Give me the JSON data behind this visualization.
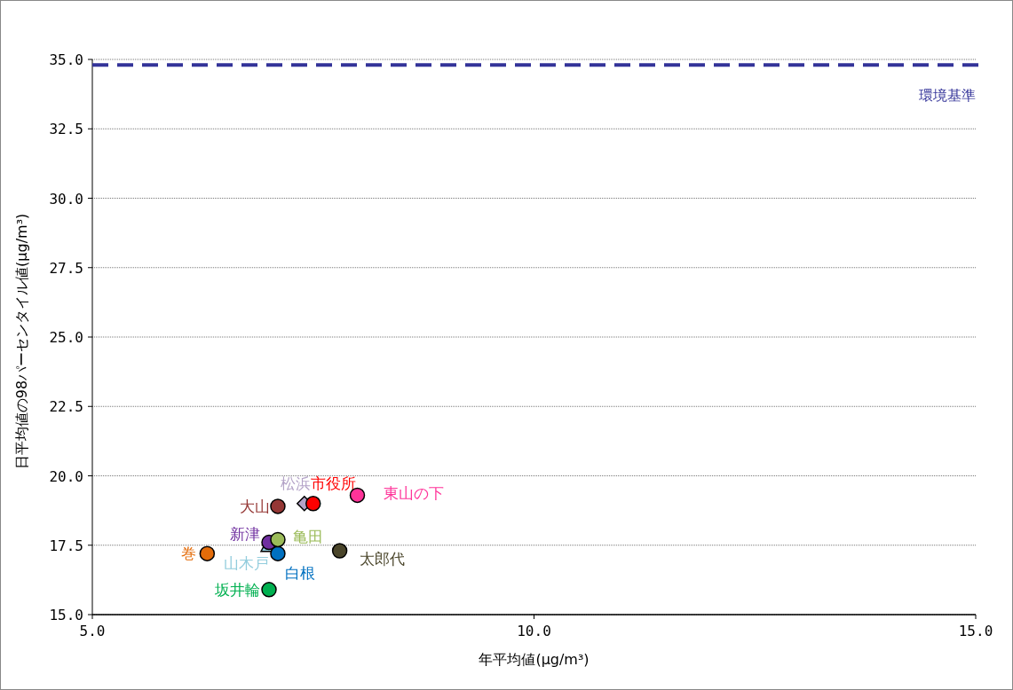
{
  "chart_data": {
    "type": "scatter",
    "xlabel": "年平均値(μg/m³)",
    "ylabel": "日平均値の98パーセンタイル値(μg/m³)",
    "xlim": [
      5,
      15
    ],
    "xticks": [
      {
        "value": 5,
        "label": "5.0"
      },
      {
        "value": 10,
        "label": "10.0"
      },
      {
        "value": 15,
        "label": "15.0"
      }
    ],
    "ylim": [
      15,
      35
    ],
    "yticks": [
      {
        "value": 15,
        "label": "15.0"
      },
      {
        "value": 17.5,
        "label": "17.5"
      },
      {
        "value": 20,
        "label": "20.0"
      },
      {
        "value": 22.5,
        "label": "22.5"
      },
      {
        "value": 25,
        "label": "25.0"
      },
      {
        "value": 27.5,
        "label": "27.5"
      },
      {
        "value": 30,
        "label": "30.0"
      },
      {
        "value": 32.5,
        "label": "32.5"
      },
      {
        "value": 35,
        "label": "35.0"
      }
    ],
    "grid": "y",
    "marker": "circle",
    "ref_lines": [
      {
        "axis": "y",
        "value": 34.8,
        "label": "環境基準",
        "color": "#333399",
        "line_style": "dashed"
      }
    ],
    "series": [
      {
        "name": "巻",
        "color": "#e46c0a",
        "x": [
          6.3
        ],
        "values": [
          17.2
        ]
      },
      {
        "name": "坂井輪",
        "color": "#00b050",
        "x": [
          7.0
        ],
        "values": [
          15.9
        ]
      },
      {
        "name": "白根",
        "color": "#0070c0",
        "x": [
          7.1
        ],
        "values": [
          17.2
        ]
      },
      {
        "name": "新津",
        "color": "#7030a0",
        "x": [
          7.0
        ],
        "values": [
          17.6
        ]
      },
      {
        "name": "亀田",
        "color": "#9bbb59",
        "x": [
          7.1
        ],
        "values": [
          17.7
        ]
      },
      {
        "name": "山木戸",
        "color": "#93cddd",
        "marker": "triangle",
        "x": [
          7.0
        ],
        "values": [
          17.5
        ]
      },
      {
        "name": "大山",
        "color": "#953735",
        "x": [
          7.1
        ],
        "values": [
          18.9
        ]
      },
      {
        "name": "松浜",
        "color": "#b3a2c7",
        "marker": "diamond",
        "x": [
          7.4
        ],
        "values": [
          19.0
        ]
      },
      {
        "name": "市役所",
        "color": "#ff0000",
        "x": [
          7.5
        ],
        "values": [
          19.0
        ]
      },
      {
        "name": "東山の下",
        "color": "#ff3399",
        "x": [
          8.0
        ],
        "values": [
          19.3
        ]
      },
      {
        "name": "太郎代",
        "color": "#4a452a",
        "x": [
          7.8
        ],
        "values": [
          17.3
        ]
      }
    ]
  }
}
